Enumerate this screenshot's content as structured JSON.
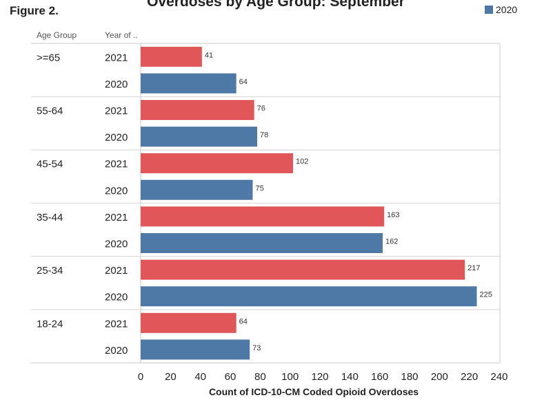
{
  "figure_label": "Figure 2.",
  "chart_data": {
    "type": "bar",
    "orientation": "horizontal",
    "title": "Overdoses by Age Group: September",
    "xlabel": "Count of ICD-10-CM Coded Opioid Overdoses",
    "column_headers": [
      "Age Group",
      "Year of .."
    ],
    "legend": [
      {
        "label": "2020",
        "color": "#4e79a7"
      }
    ],
    "xlim": [
      0,
      240
    ],
    "xticks": [
      0,
      20,
      40,
      60,
      80,
      100,
      120,
      140,
      160,
      180,
      200,
      220,
      240
    ],
    "groups": [
      {
        "age_group": ">=65",
        "bars": [
          {
            "year": "2021",
            "value": 41
          },
          {
            "year": "2020",
            "value": 64
          }
        ]
      },
      {
        "age_group": "55-64",
        "bars": [
          {
            "year": "2021",
            "value": 76
          },
          {
            "year": "2020",
            "value": 78
          }
        ]
      },
      {
        "age_group": "45-54",
        "bars": [
          {
            "year": "2021",
            "value": 102
          },
          {
            "year": "2020",
            "value": 75
          }
        ]
      },
      {
        "age_group": "35-44",
        "bars": [
          {
            "year": "2021",
            "value": 163
          },
          {
            "year": "2020",
            "value": 162
          }
        ]
      },
      {
        "age_group": "25-34",
        "bars": [
          {
            "year": "2021",
            "value": 217
          },
          {
            "year": "2020",
            "value": 225
          }
        ]
      },
      {
        "age_group": "18-24",
        "bars": [
          {
            "year": "2021",
            "value": 64
          },
          {
            "year": "2020",
            "value": 73
          }
        ]
      }
    ],
    "colors": {
      "2021": "#e15759",
      "2020": "#4e79a7"
    },
    "grid": false
  }
}
